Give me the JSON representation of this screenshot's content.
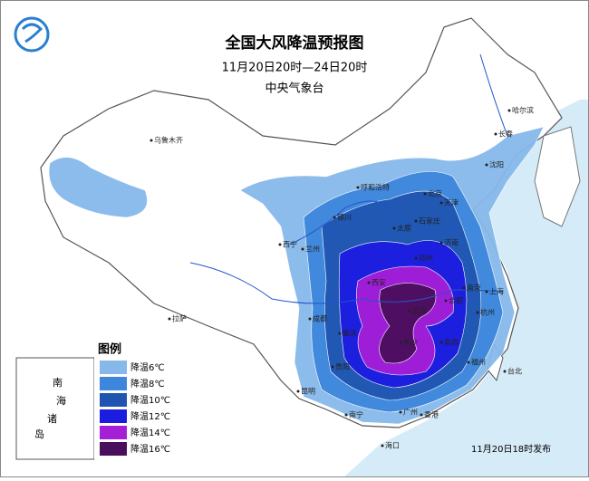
{
  "title": "全国大风降温预报图",
  "subtitle": "11月20日20时—24日20时",
  "issuer": "中央气象台",
  "release_note": "11月20日18时发布",
  "legend": {
    "title": "图例",
    "items": [
      {
        "label": "降温6℃",
        "color": "#86b8ea"
      },
      {
        "label": "降温8℃",
        "color": "#3d86dc"
      },
      {
        "label": "降温10℃",
        "color": "#1f55b0"
      },
      {
        "label": "降温12℃",
        "color": "#1c1ce0"
      },
      {
        "label": "降温14℃",
        "color": "#a51fd6"
      },
      {
        "label": "降温16℃",
        "color": "#4a0f5c"
      }
    ]
  },
  "inset": {
    "label_chars": [
      "南",
      "海",
      "诸",
      "岛"
    ]
  },
  "cities": [
    "乌鲁木齐",
    "哈尔滨",
    "长春",
    "沈阳",
    "呼和浩特",
    "北京",
    "天津",
    "石家庄",
    "太原",
    "银川",
    "西宁",
    "兰州",
    "济南",
    "郑州",
    "西安",
    "南京",
    "合肥",
    "上海",
    "杭州",
    "成都",
    "重庆",
    "武汉",
    "长沙",
    "南昌",
    "福州",
    "贵阳",
    "昆明",
    "南宁",
    "广州",
    "香港",
    "海口",
    "台北",
    "拉萨"
  ]
}
